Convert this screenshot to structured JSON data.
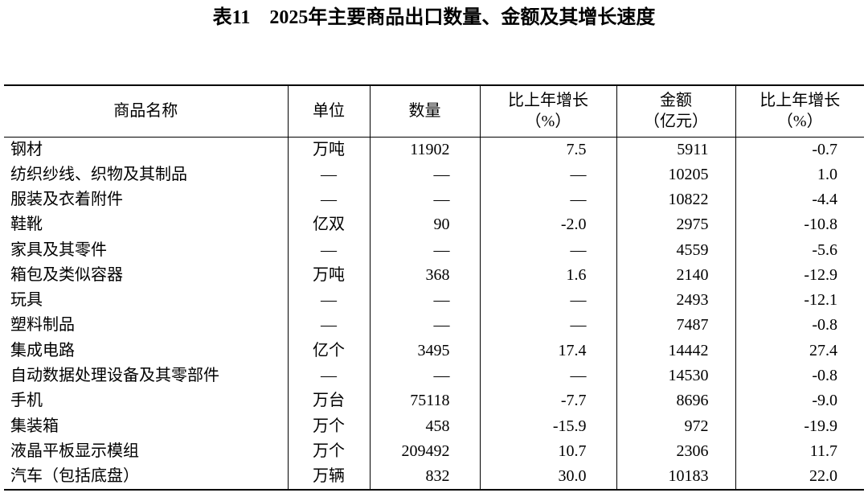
{
  "title": "表11　2025年主要商品出口数量、金额及其增长速度",
  "table": {
    "header": [
      [
        "商品名称"
      ],
      [
        "单位"
      ],
      [
        "数量"
      ],
      [
        "比上年增长",
        "（%）"
      ],
      [
        "金额",
        "（亿元）"
      ],
      [
        "比上年增长",
        "（%）"
      ]
    ],
    "rows": [
      [
        "钢材",
        "万吨",
        "11902",
        "7.5",
        "5911",
        "-0.7"
      ],
      [
        "纺织纱线、织物及其制品",
        "—",
        "—",
        "—",
        "10205",
        "1.0"
      ],
      [
        "服装及衣着附件",
        "—",
        "—",
        "—",
        "10822",
        "-4.4"
      ],
      [
        "鞋靴",
        "亿双",
        "90",
        "-2.0",
        "2975",
        "-10.8"
      ],
      [
        "家具及其零件",
        "—",
        "—",
        "—",
        "4559",
        "-5.6"
      ],
      [
        "箱包及类似容器",
        "万吨",
        "368",
        "1.6",
        "2140",
        "-12.9"
      ],
      [
        "玩具",
        "—",
        "—",
        "—",
        "2493",
        "-12.1"
      ],
      [
        "塑料制品",
        "—",
        "—",
        "—",
        "7487",
        "-0.8"
      ],
      [
        "集成电路",
        "亿个",
        "3495",
        "17.4",
        "14442",
        "27.4"
      ],
      [
        "自动数据处理设备及其零部件",
        "—",
        "—",
        "—",
        "14530",
        "-0.8"
      ],
      [
        "手机",
        "万台",
        "75118",
        "-7.7",
        "8696",
        "-9.0"
      ],
      [
        "集装箱",
        "万个",
        "458",
        "-15.9",
        "972",
        "-19.9"
      ],
      [
        "液晶平板显示模组",
        "万个",
        "209492",
        "10.7",
        "2306",
        "11.7"
      ],
      [
        "汽车（包括底盘）",
        "万辆",
        "832",
        "30.0",
        "10183",
        "22.0"
      ]
    ]
  }
}
